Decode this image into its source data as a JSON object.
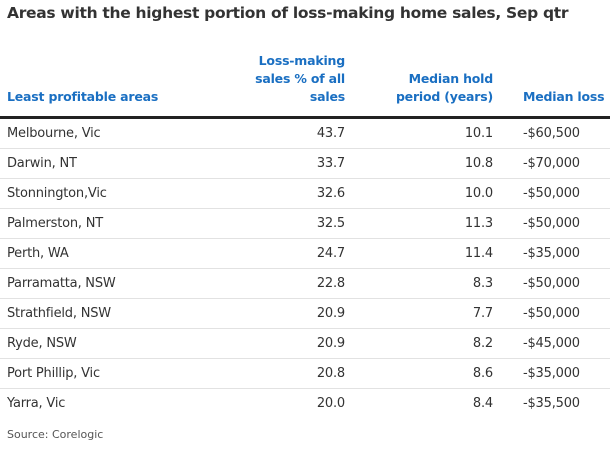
{
  "title": "Areas with the highest portion of loss-making home sales, Sep qtr",
  "colors": {
    "header": "#1a6fc2",
    "text": "#333333",
    "rule": "#222222",
    "divider": "#e2e2e2"
  },
  "chart_data": {
    "type": "table",
    "title": "Areas with the highest portion of loss-making home sales, Sep qtr",
    "columns": [
      [
        "Least profitable areas"
      ],
      [
        "Loss-making",
        "sales % of all",
        "sales"
      ],
      [
        "Median hold",
        "period (years)"
      ],
      [
        "Median loss"
      ]
    ],
    "rows": [
      [
        "Melbourne, Vic",
        "43.7",
        "10.1",
        "-$60,500"
      ],
      [
        "Darwin, NT",
        "33.7",
        "10.8",
        "-$70,000"
      ],
      [
        "Stonnington,Vic",
        "32.6",
        "10.0",
        "-$50,000"
      ],
      [
        "Palmerston, NT",
        "32.5",
        "11.3",
        "-$50,000"
      ],
      [
        "Perth, WA",
        "24.7",
        "11.4",
        "-$35,000"
      ],
      [
        "Parramatta, NSW",
        "22.8",
        "8.3",
        "-$50,000"
      ],
      [
        "Strathfield, NSW",
        "20.9",
        "7.7",
        "-$50,000"
      ],
      [
        "Ryde, NSW",
        "20.9",
        "8.2",
        "-$45,000"
      ],
      [
        "Port Phillip, Vic",
        "20.8",
        "8.6",
        "-$35,000"
      ],
      [
        "Yarra, Vic",
        "20.0",
        "8.4",
        "-$35,500"
      ]
    ],
    "source": "Source: Corelogic"
  }
}
